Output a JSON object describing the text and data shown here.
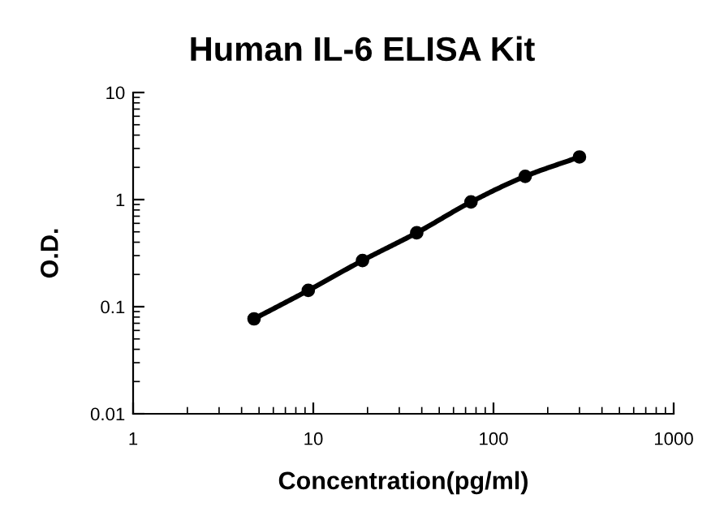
{
  "chart_data": {
    "type": "line",
    "title": "Human IL-6 ELISA Kit",
    "xlabel": "Concentration(pg/ml)",
    "ylabel": "O.D.",
    "x": [
      4.69,
      9.38,
      18.75,
      37.5,
      75,
      150,
      300
    ],
    "series": [
      {
        "color": "#000000",
        "values": [
          0.077,
          0.142,
          0.27,
          0.49,
          0.95,
          1.65,
          2.5
        ]
      }
    ],
    "log": "xy",
    "xlim": [
      1,
      1000
    ],
    "ylim": [
      0.01,
      10
    ],
    "xticks": [
      1,
      10,
      100,
      1000
    ],
    "yticks": [
      0.01,
      0.1,
      1,
      10
    ],
    "grid": false,
    "legend": false,
    "marker": "circle",
    "line_style": "solid"
  }
}
